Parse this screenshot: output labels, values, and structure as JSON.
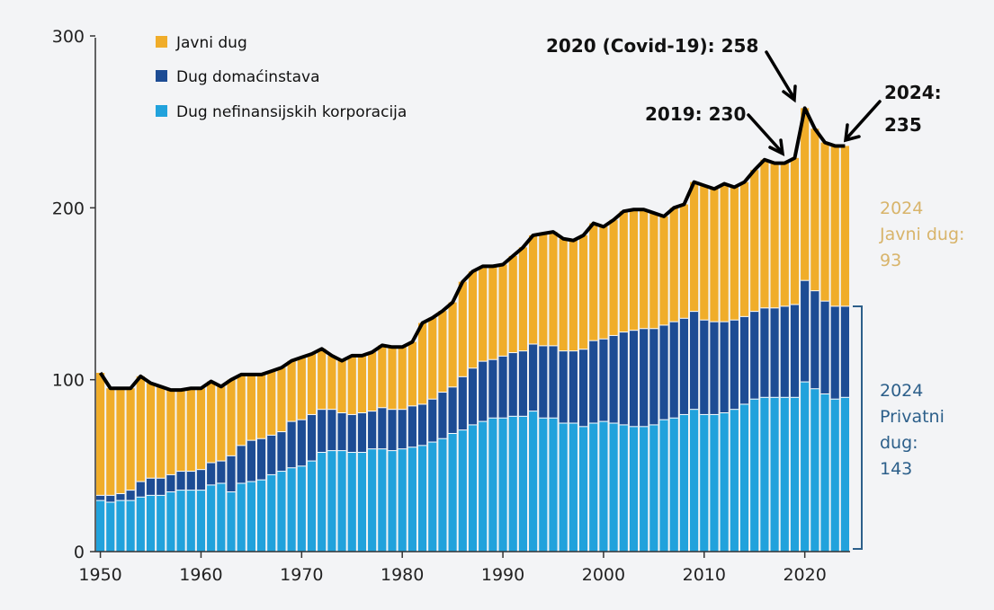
{
  "chart_data": {
    "type": "bar",
    "stacked": true,
    "x_start": 1950,
    "x_end": 2024,
    "ylim": [
      0,
      300
    ],
    "yticks": [
      "0",
      "100",
      "200",
      "300"
    ],
    "xticks": [
      "1950",
      "1960",
      "1970",
      "1980",
      "1990",
      "2000",
      "2010",
      "2020"
    ],
    "grid": false,
    "legend_position": "top-left",
    "series": [
      {
        "name": "Dug nefinansijskih korporacija",
        "color": "#21a2dc",
        "values": [
          30,
          29,
          30,
          30,
          32,
          33,
          33,
          35,
          36,
          36,
          36,
          39,
          40,
          35,
          40,
          41,
          42,
          45,
          47,
          49,
          50,
          53,
          58,
          59,
          59,
          58,
          58,
          60,
          60,
          59,
          60,
          61,
          62,
          64,
          66,
          69,
          71,
          74,
          76,
          78,
          78,
          79,
          79,
          82,
          78,
          78,
          75,
          75,
          73,
          75,
          76,
          75,
          74,
          73,
          73,
          74,
          77,
          78,
          80,
          83,
          80,
          80,
          81,
          83,
          86,
          89,
          90,
          90,
          90,
          90,
          99,
          95,
          92,
          89,
          90
        ]
      },
      {
        "name": "Dug domaćinstava",
        "color": "#1d4c94",
        "values": [
          3,
          4,
          4,
          6,
          9,
          10,
          10,
          10,
          11,
          11,
          12,
          13,
          13,
          21,
          22,
          24,
          24,
          23,
          23,
          27,
          27,
          27,
          25,
          24,
          22,
          22,
          23,
          22,
          24,
          24,
          23,
          24,
          24,
          25,
          27,
          27,
          31,
          33,
          35,
          34,
          36,
          37,
          38,
          39,
          42,
          42,
          42,
          42,
          45,
          48,
          48,
          51,
          54,
          56,
          57,
          56,
          55,
          56,
          56,
          57,
          55,
          54,
          53,
          52,
          51,
          51,
          52,
          52,
          53,
          54,
          59,
          57,
          54,
          54,
          53
        ]
      },
      {
        "name": "Javni dug",
        "color": "#f0ad2a",
        "values": [
          71,
          62,
          61,
          59,
          61,
          55,
          53,
          49,
          47,
          48,
          47,
          47,
          43,
          44,
          41,
          38,
          37,
          37,
          37,
          35,
          36,
          35,
          35,
          31,
          30,
          34,
          33,
          34,
          36,
          36,
          36,
          37,
          47,
          47,
          47,
          49,
          55,
          56,
          55,
          54,
          53,
          56,
          60,
          63,
          65,
          66,
          65,
          64,
          66,
          68,
          65,
          67,
          70,
          70,
          69,
          67,
          63,
          66,
          66,
          75,
          78,
          77,
          80,
          77,
          78,
          82,
          86,
          84,
          83,
          85,
          100,
          94,
          92,
          93,
          93
        ]
      }
    ],
    "total_annotations": [
      {
        "label": "2019: 230",
        "year": 2019,
        "value": 230
      },
      {
        "label": "2020 (Covid-19): 258",
        "year": 2020,
        "value": 258
      },
      {
        "label": "2024:",
        "label2": "235",
        "year": 2024,
        "value": 235
      }
    ],
    "side_labels": {
      "public": [
        "2024",
        "Javni dug:",
        "93"
      ],
      "private": [
        "2024",
        "Privatni",
        "dug:",
        "143"
      ]
    },
    "colors": {
      "total_line": "#000000",
      "public_label": "#d8b46a",
      "private_label": "#2c5f8a",
      "bracket": "#2c5f8a"
    }
  }
}
